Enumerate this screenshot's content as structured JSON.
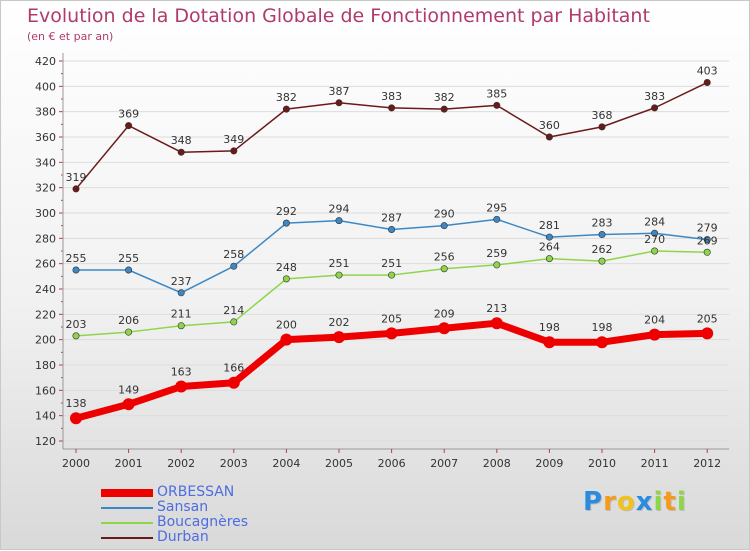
{
  "chart_data": {
    "type": "line",
    "title": "Evolution de la Dotation Globale de Fonctionnement par Habitant",
    "subtitle": "(en € et par an)",
    "categories": [
      "2000",
      "2001",
      "2002",
      "2003",
      "2004",
      "2005",
      "2006",
      "2007",
      "2008",
      "2009",
      "2010",
      "2011",
      "2012"
    ],
    "ylim": [
      120,
      420
    ],
    "ytick_step": 20,
    "yticks": [
      "120",
      "140",
      "160",
      "180",
      "200",
      "220",
      "240",
      "260",
      "280",
      "300",
      "320",
      "340",
      "360",
      "380",
      "400",
      "420"
    ],
    "series": [
      {
        "name": "Durban",
        "color": "#6b1a1a",
        "values": [
          319,
          369,
          348,
          349,
          382,
          387,
          383,
          382,
          385,
          360,
          368,
          383,
          403
        ]
      },
      {
        "name": "Sansan",
        "color": "#3d88c4",
        "values": [
          255,
          255,
          237,
          258,
          292,
          294,
          287,
          290,
          295,
          281,
          283,
          284,
          279
        ]
      },
      {
        "name": "Boucagnères",
        "color": "#8ed54a",
        "values": [
          203,
          206,
          211,
          214,
          248,
          251,
          251,
          256,
          259,
          264,
          262,
          270,
          269
        ]
      },
      {
        "name": "ORBESSAN",
        "color": "#ee0000",
        "values": [
          138,
          149,
          163,
          166,
          200,
          202,
          205,
          209,
          213,
          198,
          198,
          204,
          205
        ]
      }
    ],
    "legend": [
      "ORBESSAN",
      "Sansan",
      "Boucagnères",
      "Durban"
    ]
  },
  "branding": {
    "logo_letters": [
      "P",
      "r",
      "o",
      "x",
      "i",
      "t",
      "i"
    ],
    "logo_colors": [
      "#2a8be0",
      "#f29b1c",
      "#f2c21c",
      "#2a8be0",
      "#8ed54a",
      "#f29b1c",
      "#8ed54a"
    ]
  }
}
